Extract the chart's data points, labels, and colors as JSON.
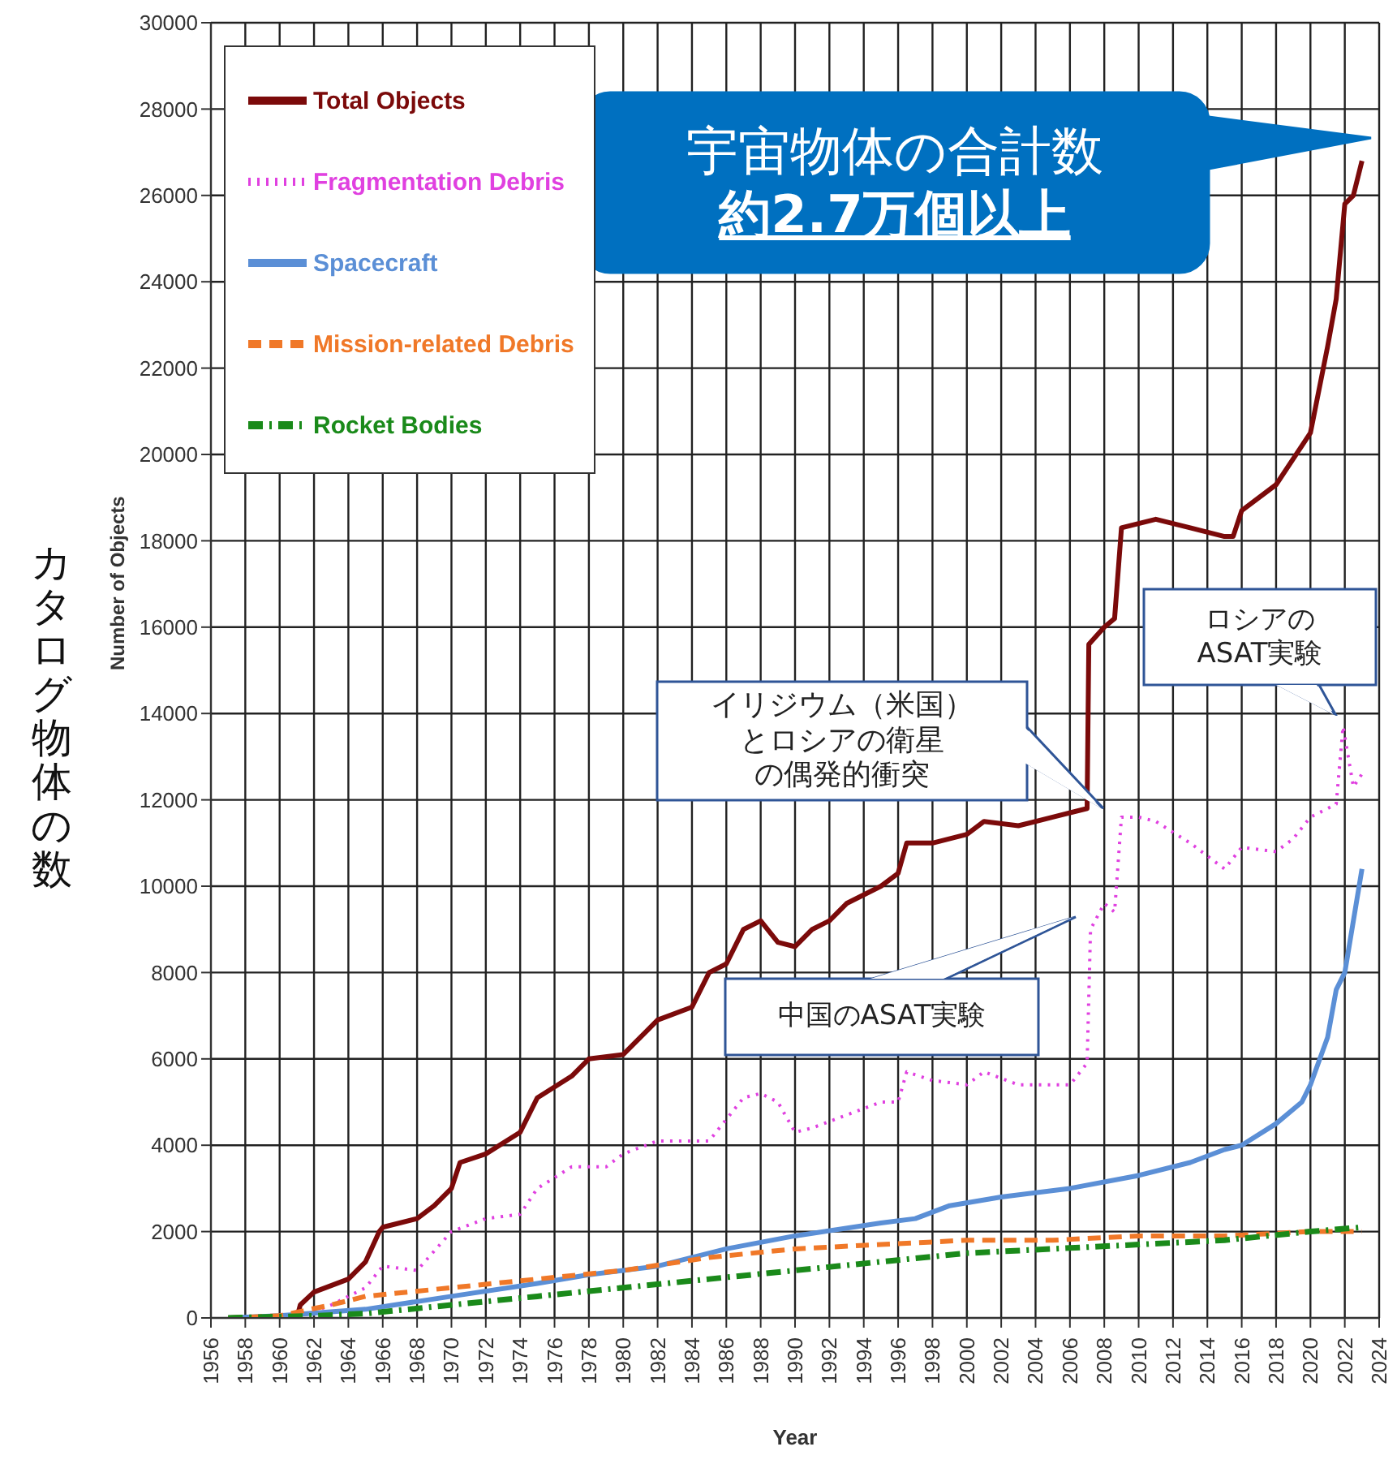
{
  "chart_data": {
    "type": "line",
    "xlabel": "Year",
    "ylabel": "Number of Objects",
    "xlim": [
      1956,
      2024
    ],
    "xticks": [
      1956,
      1958,
      1960,
      1962,
      1964,
      1966,
      1968,
      1970,
      1972,
      1974,
      1976,
      1978,
      1980,
      1982,
      1984,
      1986,
      1988,
      1990,
      1992,
      1994,
      1996,
      1998,
      2000,
      2002,
      2004,
      2006,
      2008,
      2010,
      2012,
      2014,
      2016,
      2018,
      2020,
      2022,
      2024
    ],
    "ylim": [
      0,
      30000
    ],
    "yticks": [
      0,
      2000,
      4000,
      6000,
      8000,
      10000,
      12000,
      14000,
      16000,
      18000,
      20000,
      22000,
      24000,
      26000,
      28000,
      30000
    ],
    "grid": true,
    "legend": "top left",
    "marker": "none",
    "series": [
      {
        "name": "Total Objects",
        "color": "#7b0a0a",
        "line_style": "solid",
        "x": [
          1957,
          1961,
          1961.2,
          1962,
          1964,
          1965,
          1965.8,
          1966,
          1968,
          1969,
          1970,
          1970.5,
          1972,
          1974,
          1975,
          1977,
          1978,
          1980,
          1981,
          1982,
          1984,
          1985,
          1986,
          1987,
          1988,
          1989,
          1990,
          1991,
          1992,
          1993,
          1995,
          1996,
          1996.5,
          1998,
          2000,
          2001,
          2003,
          2005,
          2007,
          2007.1,
          2008,
          2008.6,
          2009,
          2011,
          2013,
          2015,
          2015.5,
          2016,
          2018,
          2019.5,
          2020,
          2021,
          2021.5,
          2022,
          2022.5,
          2023
        ],
        "values": [
          0,
          0,
          300,
          600,
          900,
          1300,
          2000,
          2100,
          2300,
          2600,
          3000,
          3600,
          3800,
          4300,
          5100,
          5600,
          6000,
          6100,
          6500,
          6900,
          7200,
          8000,
          8200,
          9000,
          9200,
          8700,
          8600,
          9000,
          9200,
          9600,
          10000,
          10300,
          11000,
          11000,
          11200,
          11500,
          11400,
          11600,
          11800,
          15600,
          16000,
          16200,
          18300,
          18500,
          18300,
          18100,
          18100,
          18700,
          19300,
          20200,
          20500,
          22500,
          23600,
          25800,
          26000,
          26800
        ]
      },
      {
        "name": "Fragmentation Debris",
        "color": "#e040e0",
        "line_style": "dotted",
        "x": [
          1961,
          1963,
          1965,
          1966,
          1968,
          1970,
          1972,
          1974,
          1975,
          1977,
          1979,
          1980,
          1982,
          1985,
          1986,
          1987,
          1988,
          1989,
          1990,
          1991,
          1993,
          1995,
          1996,
          1996.5,
          1998,
          2000,
          2001,
          2003,
          2006,
          2007,
          2007.2,
          2008,
          2008.6,
          2009,
          2010,
          2011,
          2013,
          2015,
          2016,
          2018,
          2019,
          2020,
          2021.5,
          2021.9,
          2022.5,
          2023
        ],
        "values": [
          0,
          300,
          700,
          1200,
          1100,
          2000,
          2300,
          2400,
          3000,
          3500,
          3500,
          3800,
          4100,
          4100,
          4600,
          5100,
          5200,
          5000,
          4300,
          4400,
          4700,
          5000,
          5000,
          5700,
          5500,
          5400,
          5700,
          5400,
          5400,
          5900,
          9000,
          9600,
          9400,
          11600,
          11600,
          11500,
          11000,
          10400,
          10900,
          10800,
          11100,
          11600,
          11900,
          13700,
          12300,
          12600
        ]
      },
      {
        "name": "Spacecraft",
        "color": "#5b8fd6",
        "line_style": "solid",
        "x": [
          1957,
          1960,
          1965,
          1970,
          1975,
          1978,
          1982,
          1986,
          1990,
          1995,
          1997,
          1999,
          2002,
          2006,
          2010,
          2013,
          2015,
          2016,
          2018,
          2019.5,
          2020,
          2021,
          2021.5,
          2022,
          2023
        ],
        "values": [
          0,
          50,
          200,
          500,
          800,
          1000,
          1200,
          1600,
          1900,
          2200,
          2300,
          2600,
          2800,
          3000,
          3300,
          3600,
          3900,
          4000,
          4500,
          5000,
          5400,
          6500,
          7600,
          8000,
          10400
        ]
      },
      {
        "name": "Mission-related Debris",
        "color": "#f07828",
        "line_style": "dashed",
        "x": [
          1957,
          1960,
          1963,
          1965,
          1970,
          1975,
          1980,
          1985,
          1990,
          1995,
          2000,
          2005,
          2010,
          2015,
          2020,
          2023
        ],
        "values": [
          0,
          50,
          300,
          500,
          700,
          900,
          1100,
          1400,
          1600,
          1700,
          1800,
          1800,
          1900,
          1900,
          2000,
          2000
        ]
      },
      {
        "name": "Rocket Bodies",
        "color": "#1a8a1a",
        "line_style": "dashdot",
        "x": [
          1957,
          1962,
          1965,
          1970,
          1975,
          1980,
          1985,
          1990,
          1995,
          2000,
          2005,
          2010,
          2015,
          2020,
          2023
        ],
        "values": [
          0,
          50,
          100,
          300,
          500,
          700,
          900,
          1100,
          1300,
          1500,
          1600,
          1700,
          1800,
          2000,
          2100
        ]
      }
    ],
    "annotations": [
      "宇宙物体の合計数",
      "約2.7万個以上",
      "イリジウム（米国）",
      "とロシアの衛星",
      "の偶発的衝突",
      "中国のASAT実験",
      "ロシアの",
      "ASAT実験",
      "カタログ物体の数"
    ]
  }
}
